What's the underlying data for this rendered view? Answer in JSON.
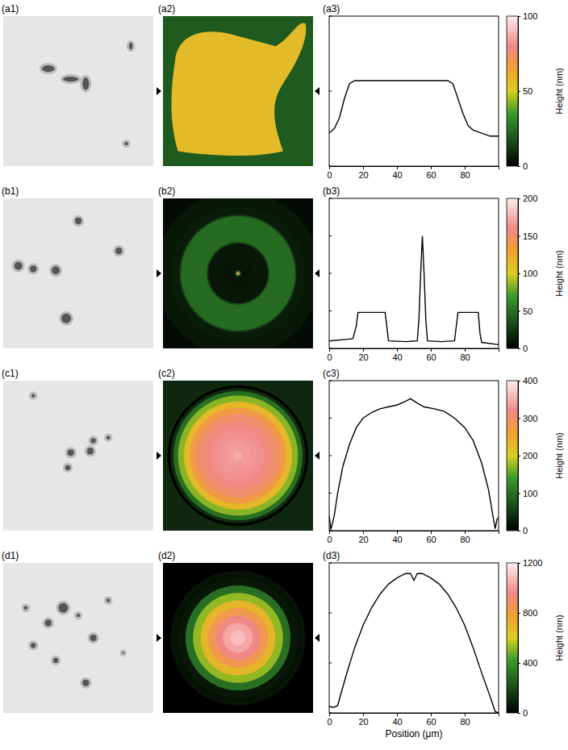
{
  "chart_data": [
    {
      "type": "line",
      "panel_labels": [
        "(a1)",
        "(a2)",
        "(a3)"
      ],
      "x": [
        0,
        3,
        6,
        9,
        12,
        15,
        20,
        30,
        40,
        50,
        60,
        70,
        73,
        76,
        79,
        82,
        85,
        90,
        95,
        100
      ],
      "values": [
        22,
        25,
        32,
        45,
        55,
        57,
        57,
        57,
        57,
        57,
        57,
        57,
        55,
        45,
        35,
        27,
        24,
        22,
        20,
        20
      ],
      "xlim": [
        0,
        100
      ],
      "xticks": [
        0,
        20,
        40,
        60,
        80
      ],
      "ylim": [
        0,
        100
      ],
      "yticks": [
        0,
        50,
        100
      ],
      "y_label": "Height (nm)"
    },
    {
      "type": "line",
      "panel_labels": [
        "(b1)",
        "(b2)",
        "(b3)"
      ],
      "x": [
        0,
        10,
        14,
        16,
        17,
        25,
        33,
        34,
        35,
        45,
        52,
        53,
        54,
        55,
        56,
        57,
        58,
        66,
        74,
        76,
        85,
        88,
        89,
        90,
        100
      ],
      "values": [
        10,
        12,
        13,
        30,
        48,
        48,
        48,
        30,
        10,
        9,
        10,
        40,
        100,
        150,
        100,
        40,
        10,
        9,
        10,
        48,
        48,
        48,
        20,
        8,
        5
      ],
      "xlim": [
        0,
        100
      ],
      "xticks": [
        0,
        20,
        40,
        60,
        80
      ],
      "ylim": [
        0,
        200
      ],
      "yticks": [
        0,
        50,
        100,
        150,
        200
      ],
      "y_label": "Height (nm)"
    },
    {
      "type": "line",
      "panel_labels": [
        "(c1)",
        "(c2)",
        "(c3)"
      ],
      "x": [
        0,
        1,
        3,
        5,
        8,
        12,
        16,
        20,
        25,
        30,
        35,
        40,
        45,
        48,
        52,
        56,
        62,
        68,
        74,
        80,
        85,
        90,
        94,
        97,
        98,
        99,
        100
      ],
      "values": [
        40,
        3,
        40,
        100,
        170,
        230,
        275,
        300,
        315,
        325,
        330,
        335,
        345,
        352,
        340,
        330,
        325,
        318,
        300,
        275,
        240,
        180,
        110,
        30,
        5,
        30,
        35
      ],
      "xlim": [
        0,
        100
      ],
      "xticks": [
        0,
        20,
        40,
        60,
        80
      ],
      "ylim": [
        0,
        400
      ],
      "yticks": [
        0,
        100,
        200,
        300,
        400
      ],
      "y_label": "Height (nm)"
    },
    {
      "type": "line",
      "panel_labels": [
        "(d1)",
        "(d2)",
        "(d3)"
      ],
      "x": [
        0,
        3,
        5,
        10,
        15,
        20,
        25,
        30,
        35,
        40,
        45,
        48,
        50,
        52,
        55,
        60,
        65,
        70,
        75,
        80,
        85,
        90,
        95,
        98,
        100
      ],
      "values": [
        50,
        45,
        60,
        300,
        520,
        700,
        840,
        950,
        1030,
        1080,
        1115,
        1115,
        1060,
        1115,
        1115,
        1080,
        1030,
        950,
        840,
        700,
        520,
        320,
        130,
        10,
        0
      ],
      "xlim": [
        0,
        100
      ],
      "xticks": [
        0,
        20,
        40,
        60,
        80
      ],
      "ylim": [
        0,
        1200
      ],
      "yticks": [
        0,
        400,
        800,
        1200
      ],
      "y_label": "Height (nm)",
      "x_label": "Position (μm)"
    }
  ]
}
